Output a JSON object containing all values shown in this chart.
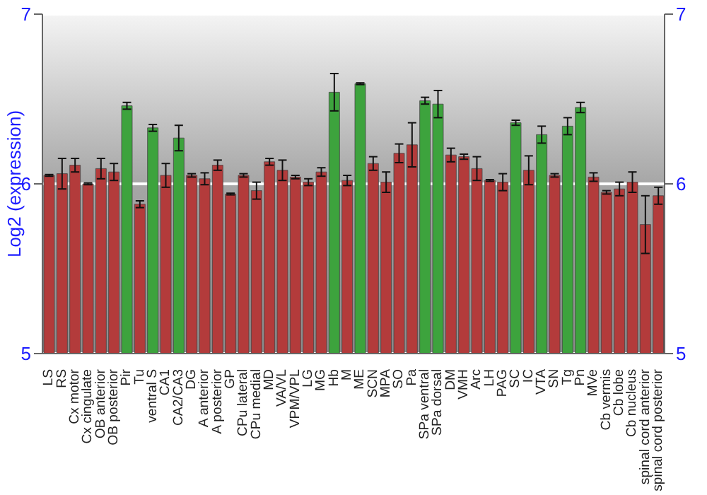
{
  "chart_data": {
    "type": "bar",
    "ylabel": "Log2 (expression)",
    "categories": [
      "LS",
      "RS",
      "Cx motor",
      "Cx cingulate",
      "OB anterior",
      "OB posterior",
      "Pir",
      "Tu",
      "ventral S",
      "CA1",
      "CA2/CA3",
      "DG",
      "A anterior",
      "A posterior",
      "GP",
      "CPu lateral",
      "CPu medial",
      "MD",
      "VA/VL",
      "VPM/VPL",
      "LG",
      "MG",
      "Hb",
      "M",
      "ME",
      "SCN",
      "MPA",
      "SO",
      "Pa",
      "SPa ventral",
      "SPa dorsal",
      "DM",
      "VMH",
      "Arc",
      "LH",
      "PAG",
      "SC",
      "IC",
      "VTA",
      "SN",
      "Tg",
      "Pn",
      "MVe",
      "Cb vermis",
      "Cb lobe",
      "Cb nucleus",
      "spinal cord anterior",
      "spinal cord posterior"
    ],
    "values": [
      6.05,
      6.06,
      6.11,
      6.0,
      6.09,
      6.07,
      6.46,
      5.88,
      6.33,
      6.05,
      6.27,
      6.05,
      6.03,
      6.11,
      5.94,
      6.05,
      5.96,
      6.13,
      6.08,
      6.04,
      6.01,
      6.07,
      6.54,
      6.02,
      6.59,
      6.12,
      6.01,
      6.18,
      6.23,
      6.49,
      6.47,
      6.17,
      6.16,
      6.09,
      6.02,
      6.01,
      6.36,
      6.08,
      6.29,
      6.05,
      6.34,
      6.45,
      6.04,
      5.95,
      5.97,
      6.01,
      5.76,
      5.93
    ],
    "errors": [
      0.005,
      0.09,
      0.04,
      0.005,
      0.06,
      0.05,
      0.02,
      0.02,
      0.02,
      0.07,
      0.075,
      0.01,
      0.035,
      0.03,
      0.005,
      0.01,
      0.05,
      0.02,
      0.06,
      0.01,
      0.02,
      0.025,
      0.11,
      0.03,
      0.005,
      0.04,
      0.06,
      0.055,
      0.13,
      0.02,
      0.08,
      0.04,
      0.015,
      0.07,
      0.005,
      0.05,
      0.015,
      0.085,
      0.05,
      0.01,
      0.05,
      0.03,
      0.025,
      0.01,
      0.04,
      0.06,
      0.17,
      0.05
    ],
    "colors": [
      "#b33b3b",
      "#b33b3b",
      "#b33b3b",
      "#b33b3b",
      "#b33b3b",
      "#b33b3b",
      "#3da33d",
      "#b33b3b",
      "#3da33d",
      "#b33b3b",
      "#3da33d",
      "#b33b3b",
      "#b33b3b",
      "#b33b3b",
      "#b33b3b",
      "#b33b3b",
      "#b33b3b",
      "#b33b3b",
      "#b33b3b",
      "#b33b3b",
      "#b33b3b",
      "#b33b3b",
      "#3da33d",
      "#b33b3b",
      "#3da33d",
      "#b33b3b",
      "#b33b3b",
      "#b33b3b",
      "#b33b3b",
      "#3da33d",
      "#3da33d",
      "#b33b3b",
      "#b33b3b",
      "#b33b3b",
      "#b33b3b",
      "#b33b3b",
      "#3da33d",
      "#b33b3b",
      "#3da33d",
      "#b33b3b",
      "#3da33d",
      "#3da33d",
      "#b33b3b",
      "#b33b3b",
      "#b33b3b",
      "#b33b3b",
      "#b33b3b",
      "#b33b3b"
    ],
    "ylim": [
      5,
      7
    ],
    "yticks": [
      5,
      6,
      7
    ],
    "y2lim": [
      5,
      7
    ],
    "y2ticks": [
      5,
      6,
      7
    ],
    "grid": "y"
  }
}
